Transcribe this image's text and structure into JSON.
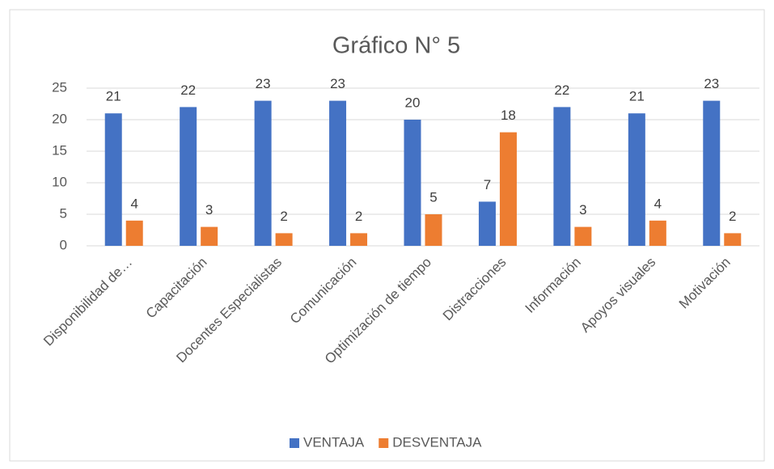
{
  "chart_data": {
    "type": "bar",
    "title": "Gráfico N° 5",
    "categories": [
      "Disponibilidad de…",
      "Capacitación",
      "Docentes Especialistas",
      "Comunicación",
      "Optimización de tiempo",
      "Distracciones",
      "Información",
      "Apoyos visuales",
      "Motivación"
    ],
    "series": [
      {
        "name": "VENTAJA",
        "color": "#4472c4",
        "values": [
          21,
          22,
          23,
          23,
          20,
          7,
          22,
          21,
          23
        ]
      },
      {
        "name": "DESVENTAJA",
        "color": "#ed7d31",
        "values": [
          4,
          3,
          2,
          2,
          5,
          18,
          3,
          4,
          2
        ]
      }
    ],
    "ylim": [
      0,
      25
    ],
    "yticks": [
      0,
      5,
      10,
      15,
      20,
      25
    ],
    "grid": true,
    "legend": "bottom"
  }
}
